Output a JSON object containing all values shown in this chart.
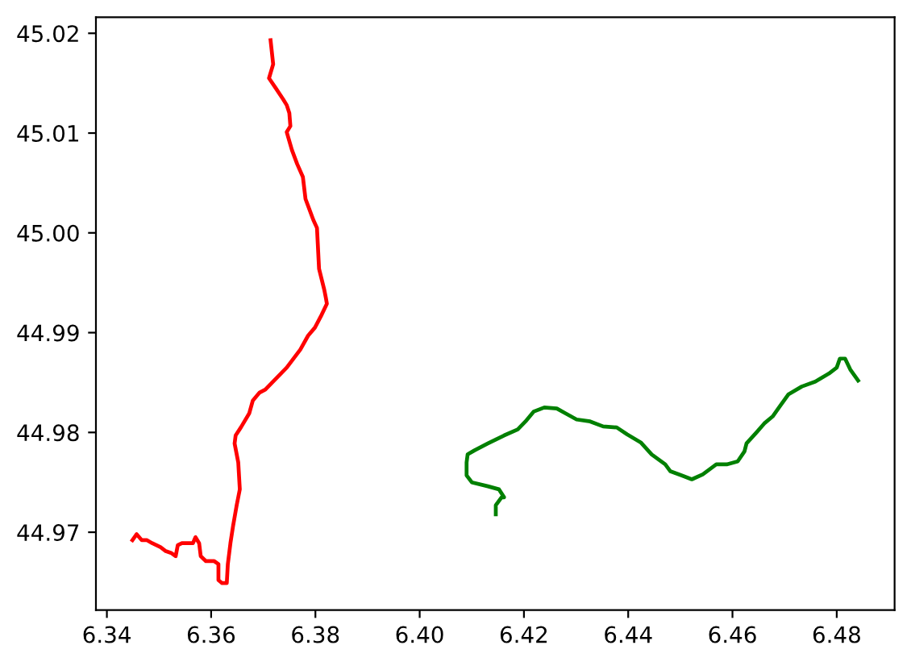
{
  "chart_data": {
    "type": "line",
    "series": [
      {
        "color": "#ff0000",
        "x": [
          6.3714,
          6.3719,
          6.3711,
          6.3724,
          6.3738,
          6.3745,
          6.375,
          6.3752,
          6.3745,
          6.3755,
          6.3765,
          6.3776,
          6.3781,
          6.3796,
          6.3803,
          6.3807,
          6.3817,
          6.382,
          6.3822,
          6.3812,
          6.3799,
          6.3786,
          6.3771,
          6.3745,
          6.3719,
          6.3704,
          6.3693,
          6.368,
          6.3673,
          6.3657,
          6.3647,
          6.3645,
          6.3652,
          6.3655,
          6.3649,
          6.3642,
          6.3637,
          6.3632,
          6.363,
          6.3621,
          6.3614,
          6.3614,
          6.3606,
          6.359,
          6.358,
          6.3577,
          6.357,
          6.3565,
          6.3544,
          6.3536,
          6.3532,
          6.3524,
          6.3513,
          6.3503,
          6.3487,
          6.3477,
          6.3467,
          6.3457,
          6.3449
        ],
        "values": [
          45.0193,
          45.0169,
          45.0155,
          45.0145,
          45.0134,
          45.0128,
          45.012,
          45.0107,
          45.0101,
          45.0083,
          45.0069,
          45.0056,
          45.0034,
          45.0013,
          45.0005,
          44.9964,
          44.9943,
          44.9935,
          44.9929,
          44.9918,
          44.9905,
          44.9897,
          44.9883,
          44.9865,
          44.9851,
          44.9843,
          44.984,
          44.9832,
          44.9819,
          44.9805,
          44.9797,
          44.9789,
          44.977,
          44.9743,
          44.9727,
          44.9706,
          44.9689,
          44.9668,
          44.9649,
          44.9649,
          44.9652,
          44.9668,
          44.9671,
          44.9671,
          44.9676,
          44.9689,
          44.9695,
          44.9689,
          44.9689,
          44.9687,
          44.9676,
          44.9679,
          44.9681,
          44.9685,
          44.9689,
          44.9692,
          44.9692,
          44.9698,
          44.9692
        ]
      },
      {
        "color": "#008000",
        "x": [
          6.4146,
          6.4146,
          6.4157,
          6.4162,
          6.4152,
          6.4131,
          6.41,
          6.409,
          6.409,
          6.4092,
          6.4105,
          6.4131,
          6.4162,
          6.4188,
          6.4203,
          6.4219,
          6.4239,
          6.4263,
          6.428,
          6.4301,
          6.4327,
          6.4352,
          6.4378,
          6.4398,
          6.4424,
          6.4445,
          6.4471,
          6.4481,
          6.4502,
          6.4522,
          6.4543,
          6.4569,
          6.4589,
          6.461,
          6.4623,
          6.4627,
          6.4646,
          6.4661,
          6.4677,
          6.4692,
          6.4707,
          6.4733,
          6.4759,
          6.4785,
          6.48,
          6.4806,
          6.4816,
          6.4826,
          6.4841
        ],
        "values": [
          44.9718,
          44.9727,
          44.9735,
          44.9735,
          44.9743,
          44.9746,
          44.975,
          44.9757,
          44.977,
          44.9778,
          44.9782,
          44.9789,
          44.9797,
          44.9803,
          44.9811,
          44.9821,
          44.9825,
          44.9824,
          44.9819,
          44.9813,
          44.9811,
          44.9806,
          44.9805,
          44.9798,
          44.979,
          44.9778,
          44.9768,
          44.9761,
          44.9757,
          44.9753,
          44.9758,
          44.9768,
          44.9768,
          44.9771,
          44.9781,
          44.9789,
          44.98,
          44.9809,
          44.9816,
          44.9827,
          44.9838,
          44.9846,
          44.9851,
          44.9859,
          44.9865,
          44.9874,
          44.9874,
          44.9863,
          44.9852
        ]
      }
    ],
    "xlim": [
      6.3379,
      6.4911
    ],
    "ylim": [
      44.9622,
      45.0216
    ],
    "xticks": [
      6.34,
      6.36,
      6.38,
      {
        "value": 6.4,
        "label": "6.40"
      },
      6.42,
      6.44,
      6.46,
      6.48
    ],
    "yticks": [
      44.97,
      44.98,
      44.99,
      {
        "value": 45.0,
        "label": "45.00"
      },
      45.01,
      45.02
    ],
    "grid": false,
    "marker": "none",
    "line_style": "solid"
  }
}
